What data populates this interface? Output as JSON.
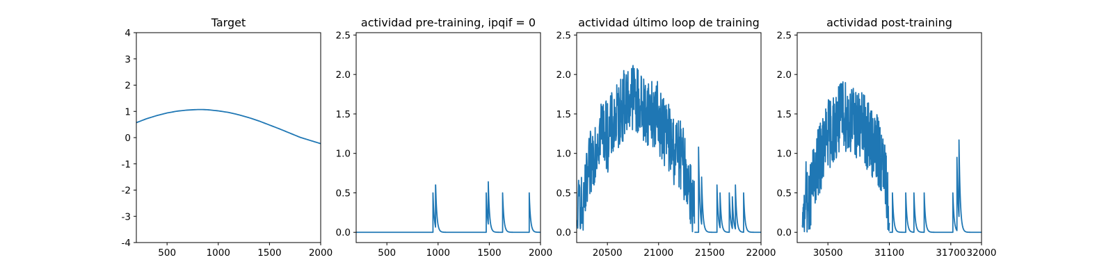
{
  "colors": {
    "series": "#1f77b4",
    "axes": "#000000",
    "background": "#ffffff"
  },
  "chart_data": [
    {
      "type": "line",
      "title": "Target",
      "xlim": [
        200,
        2000
      ],
      "ylim": [
        -4,
        4
      ],
      "xticks": [
        500,
        1000,
        1500,
        2000
      ],
      "yticks": [
        -4,
        -3,
        -2,
        -1,
        0,
        1,
        2,
        3,
        4
      ],
      "series": [
        {
          "kind": "smooth",
          "x": [
            200,
            300,
            400,
            500,
            600,
            700,
            800,
            850,
            900,
            1000,
            1100,
            1200,
            1300,
            1400,
            1500,
            1600,
            1700,
            1800,
            1900,
            2000
          ],
          "y": [
            0.57,
            0.72,
            0.84,
            0.94,
            1.01,
            1.05,
            1.07,
            1.07,
            1.06,
            1.02,
            0.96,
            0.87,
            0.76,
            0.63,
            0.48,
            0.33,
            0.17,
            0.01,
            -0.11,
            -0.23
          ]
        }
      ]
    },
    {
      "type": "line",
      "title": "actividad pre-training, ipqif = 0",
      "xlim": [
        200,
        2000
      ],
      "ylim": [
        -0.13,
        2.53
      ],
      "xticks": [
        500,
        1000,
        1500,
        2000
      ],
      "yticks": [
        0.0,
        0.5,
        1.0,
        1.5,
        2.0,
        2.5
      ],
      "series": [
        {
          "kind": "spikes",
          "baseline": 0.0,
          "x0": 200,
          "x1": 2000,
          "spikes": [
            [
              950,
              0.5
            ],
            [
              975,
              0.6
            ],
            [
              1470,
              0.5
            ],
            [
              1490,
              0.64
            ],
            [
              1630,
              0.5
            ],
            [
              1890,
              0.5
            ]
          ]
        }
      ]
    },
    {
      "type": "line",
      "title": "actividad último loop de training",
      "xlim": [
        20200,
        22000
      ],
      "ylim": [
        -0.13,
        2.53
      ],
      "xticks": [
        20500,
        21000,
        21500,
        22000
      ],
      "yticks": [
        0.0,
        0.5,
        1.0,
        1.5,
        2.0,
        2.5
      ],
      "series": [
        {
          "kind": "noisy",
          "x": [
            20200,
            20230,
            20260,
            20300,
            20350,
            20400,
            20450,
            20500,
            20550,
            20600,
            20650,
            20700,
            20750,
            20800,
            20850,
            20900,
            20950,
            21000,
            21050,
            21100,
            21150,
            21200,
            21250,
            21300,
            21350
          ],
          "y": [
            0.0,
            0.5,
            0.2,
            0.6,
            0.95,
            1.2,
            1.35,
            1.2,
            1.35,
            1.45,
            1.6,
            1.7,
            1.75,
            1.65,
            1.55,
            1.55,
            1.5,
            1.45,
            1.3,
            1.2,
            1.05,
            1.0,
            0.85,
            0.6,
            0.3
          ],
          "amplitude": 0.45,
          "peak": 2.12
        },
        {
          "kind": "spikes",
          "baseline": 0.0,
          "x0": 21350,
          "x1": 22000,
          "spikes": [
            [
              21390,
              1.08
            ],
            [
              21420,
              0.7
            ],
            [
              21570,
              0.6
            ],
            [
              21600,
              0.5
            ],
            [
              21690,
              0.5
            ],
            [
              21720,
              0.45
            ],
            [
              21750,
              0.6
            ],
            [
              21830,
              0.5
            ]
          ]
        }
      ]
    },
    {
      "type": "line",
      "title": "actividad post-training",
      "xlim": [
        30200,
        32000
      ],
      "ylim": [
        -0.13,
        2.53
      ],
      "xticks": [
        30500,
        31100,
        31700,
        32000
      ],
      "yticks": [
        0.0,
        0.5,
        1.0,
        1.5,
        2.0,
        2.5
      ],
      "series": [
        {
          "kind": "noisy",
          "x": [
            30250,
            30280,
            30310,
            30350,
            30400,
            30450,
            30500,
            30550,
            30600,
            30650,
            30700,
            30750,
            30800,
            30850,
            30900,
            30950,
            31000,
            31050,
            31100
          ],
          "y": [
            0.0,
            0.5,
            0.3,
            0.6,
            0.85,
            1.05,
            1.25,
            1.3,
            1.4,
            1.5,
            1.45,
            1.4,
            1.35,
            1.3,
            1.2,
            1.1,
            1.0,
            0.75,
            0.3
          ],
          "amplitude": 0.45,
          "peak": 1.95
        },
        {
          "kind": "spikes",
          "baseline": 0.0,
          "x0": 31100,
          "x1": 32000,
          "spikes": [
            [
              31130,
              0.5
            ],
            [
              31260,
              0.5
            ],
            [
              31340,
              0.5
            ],
            [
              31440,
              0.5
            ],
            [
              31720,
              0.5
            ],
            [
              31760,
              0.95
            ],
            [
              31780,
              1.17
            ]
          ]
        }
      ]
    }
  ]
}
